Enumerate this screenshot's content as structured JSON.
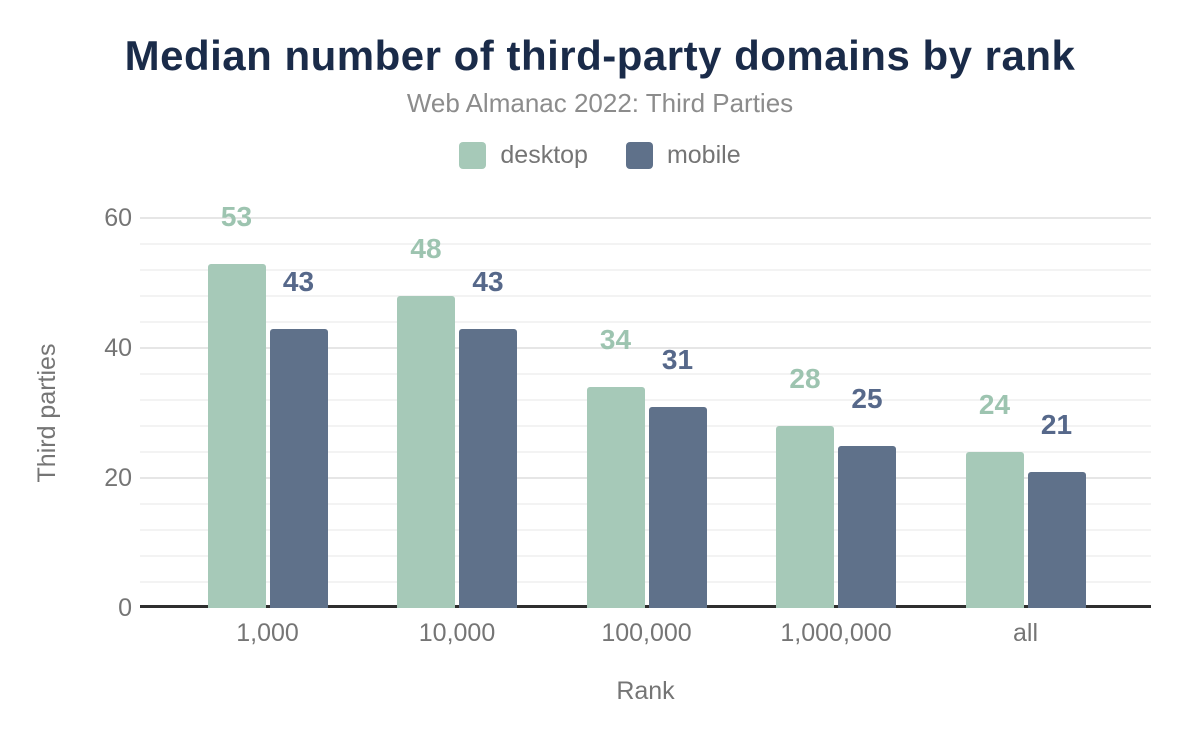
{
  "colors": {
    "background": "#ffffff",
    "title_text": "#1a2b49",
    "subtitle_text": "#8c8c8c",
    "secondary_text": "#757575",
    "axis_line": "#2e2e2e",
    "gridline_major": "#e6e6e6",
    "gridline_minor": "#f3f3f3"
  },
  "chart_data": {
    "type": "bar",
    "title": "Median number of third-party domains by rank",
    "subtitle": "Web Almanac 2022: Third Parties",
    "xlabel": "Rank",
    "ylabel": "Third parties",
    "categories": [
      "1,000",
      "10,000",
      "100,000",
      "1,000,000",
      "all"
    ],
    "series": [
      {
        "name": "desktop",
        "color": "#a6c9b8",
        "label_color": "#9dc4b0",
        "values": [
          53,
          48,
          34,
          28,
          24
        ]
      },
      {
        "name": "mobile",
        "color": "#5f718a",
        "label_color": "#56688a",
        "values": [
          43,
          43,
          31,
          25,
          21
        ]
      }
    ],
    "ylim": [
      0,
      60
    ],
    "yticks": [
      0,
      20,
      40,
      60
    ],
    "grid": {
      "major_every": 20,
      "minor_every": 4,
      "minor_on": true
    },
    "legend_position": "top-center",
    "bar_value_labels": true
  }
}
